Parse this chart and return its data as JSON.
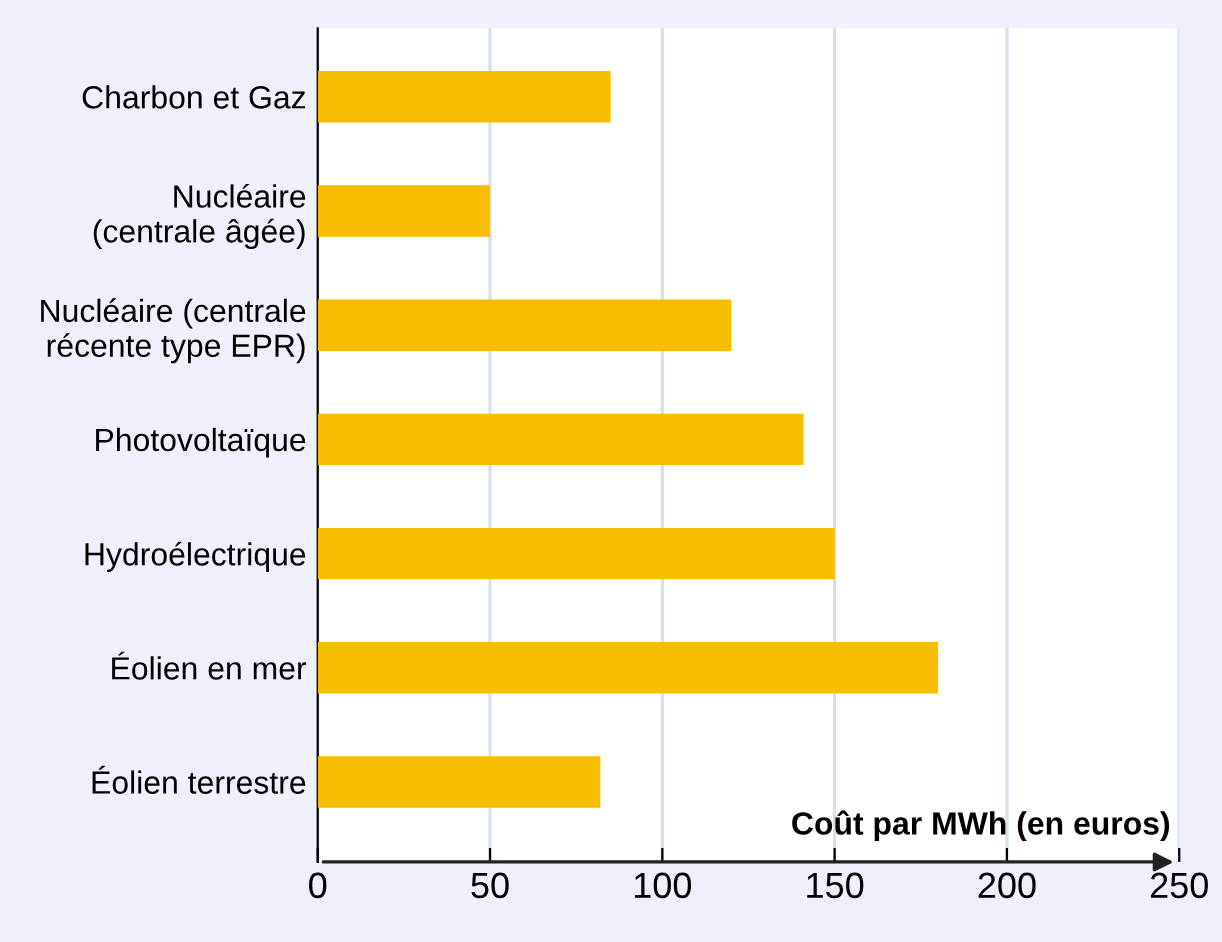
{
  "chart_data": {
    "type": "bar",
    "orientation": "horizontal",
    "categories": [
      "Charbon et Gaz",
      "Nucléaire\n(centrale âgée)",
      "Nucléaire (centrale\nrécente type EPR)",
      "Photovoltaïque",
      "Hydroélectrique",
      "Éolien en mer",
      "Éolien terrestre"
    ],
    "values": [
      85,
      50,
      120,
      141,
      150,
      180,
      82
    ],
    "color": "#f7bd00",
    "xlabel": "Coût par MWh (en euros)",
    "xlim": [
      0,
      250
    ],
    "xticks": [
      0,
      50,
      100,
      150,
      200,
      250
    ],
    "grid": "x"
  }
}
